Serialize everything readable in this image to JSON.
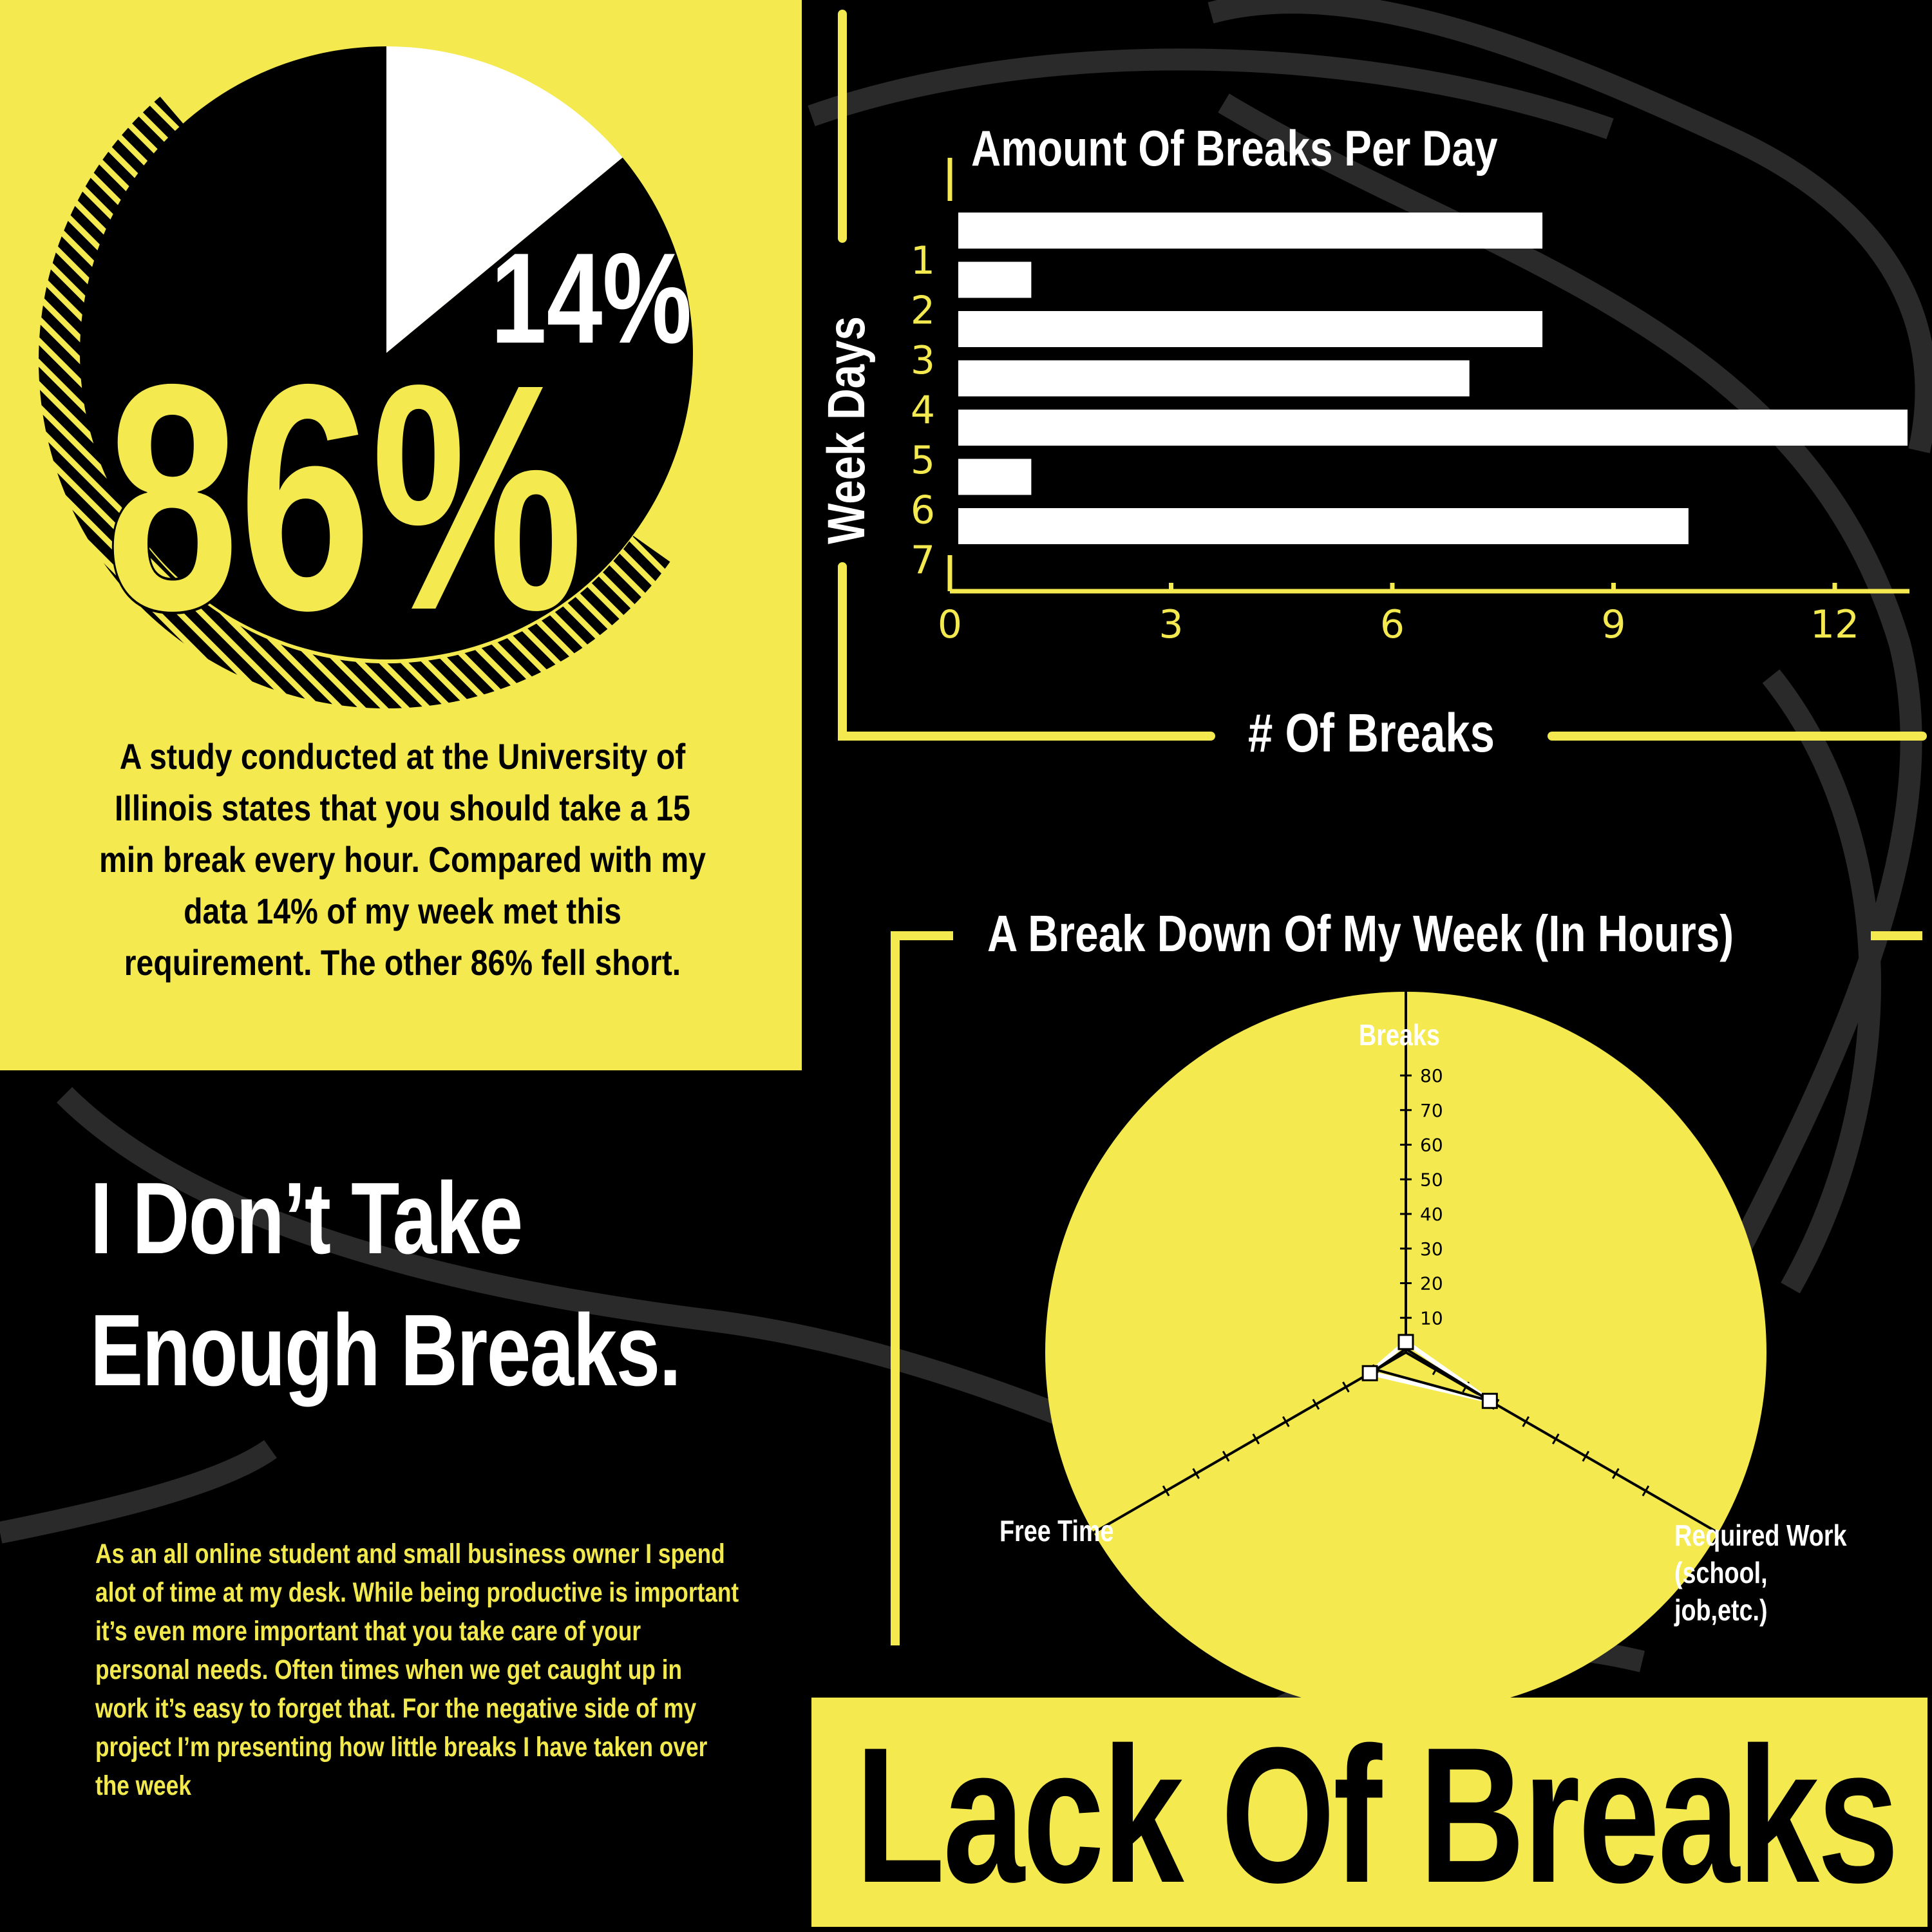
{
  "title": "Lack Of Breaks",
  "headline": [
    "I Don’t Take",
    "Enough Breaks."
  ],
  "study_text": "A study conducted at the University of Illinois states that you should take a 15 min break every hour.  Compared with my data 14% of my week met this requirement.  The other 86% fell short.",
  "bio_text": "As an all online student and small business owner I spend alot of time at  my desk.  While being productive is important it’s even more important that you take care of your personal needs.  Often times when we get caught up in work it’s easy to forget that.  For the negative side of my project I’m presenting how little breaks I have taken over the week",
  "colors": {
    "yellow": "#f4ea4f",
    "black": "#000000",
    "white": "#ffffff"
  },
  "chart_data": [
    {
      "type": "pie",
      "slices": [
        {
          "label": "14%",
          "value": 14,
          "color": "#ffffff"
        },
        {
          "label": "86%",
          "value": 86,
          "color": "#000000"
        }
      ]
    },
    {
      "type": "bar",
      "orientation": "horizontal",
      "title": "Amount Of Breaks Per Day",
      "xlabel": "# Of Breaks",
      "ylabel": "Week Days",
      "categories": [
        "1",
        "2",
        "3",
        "4",
        "5",
        "6",
        "7"
      ],
      "values": [
        8,
        1,
        8,
        7,
        13,
        1,
        10
      ],
      "xticks": [
        0,
        3,
        6,
        9,
        12
      ],
      "xlim": [
        0,
        13
      ]
    },
    {
      "type": "radar",
      "title": "A Break Down Of My Week (In Hours)",
      "axes": [
        "Breaks",
        "Required Work (school, job,etc.)",
        "Free Time"
      ],
      "rticks": [
        10,
        20,
        30,
        40,
        50,
        60,
        70,
        80
      ],
      "rlim": [
        0,
        80
      ],
      "series": [
        {
          "values": [
            3,
            28,
            12
          ],
          "color": "#ffffff"
        },
        {
          "values": [
            1,
            28,
            10
          ],
          "color": "#000000"
        }
      ]
    }
  ]
}
